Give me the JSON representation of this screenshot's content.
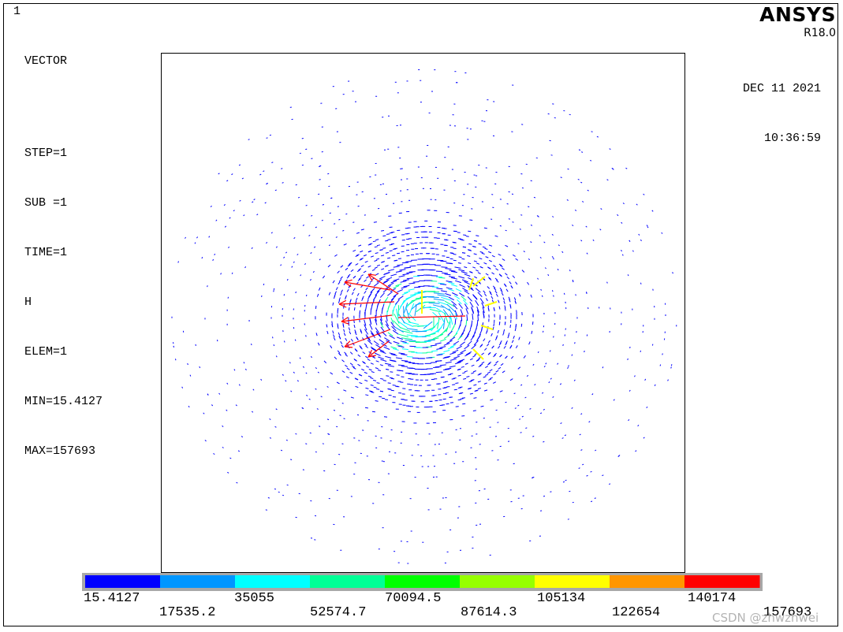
{
  "window_number": "1",
  "plot_mode": "VECTOR",
  "info": {
    "step": "STEP=1",
    "sub": "SUB =1",
    "time": "TIME=1",
    "item": "H",
    "elem": "ELEM=1",
    "min": "MIN=15.4127",
    "max": "MAX=157693"
  },
  "logo": {
    "brand": "ANSYS",
    "version": "R18.0"
  },
  "date": "DEC 11 2021",
  "time_of_day": "10:36:59",
  "watermark": "CSDN @zhwzhwei",
  "chart_data": {
    "type": "vector field (magnetic field intensity H)",
    "min": 15.4127,
    "max": 157693,
    "contour_colors": [
      "#0000ff",
      "#0096ff",
      "#00ffff",
      "#00ff96",
      "#00ff00",
      "#96ff00",
      "#ffff00",
      "#ff9600",
      "#ff0000"
    ],
    "legend_ticks_top": [
      "15.4127",
      "35055",
      "70094.5",
      "105134",
      "140174"
    ],
    "legend_ticks_bottom": [
      "17535.2",
      "52574.7",
      "87614.3",
      "122654",
      "157693"
    ]
  }
}
